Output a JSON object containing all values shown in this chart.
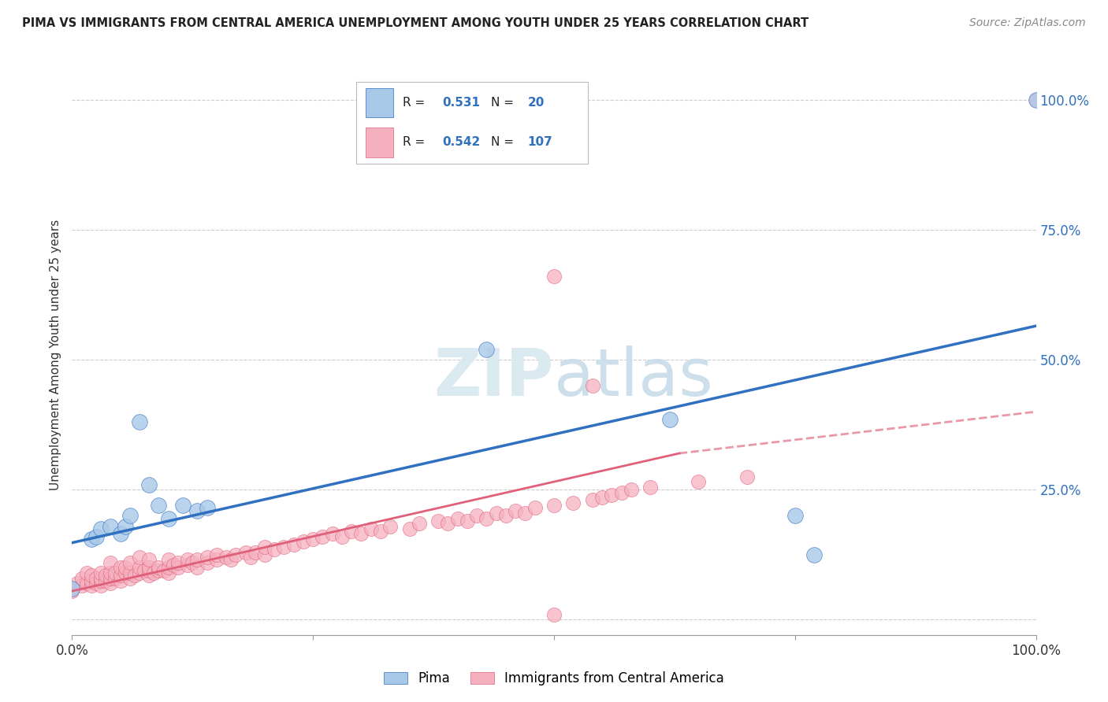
{
  "title": "PIMA VS IMMIGRANTS FROM CENTRAL AMERICA UNEMPLOYMENT AMONG YOUTH UNDER 25 YEARS CORRELATION CHART",
  "source": "Source: ZipAtlas.com",
  "ylabel": "Unemployment Among Youth under 25 years",
  "xlim": [
    0.0,
    1.0
  ],
  "ylim": [
    -0.03,
    1.05
  ],
  "pima_R": 0.531,
  "pima_N": 20,
  "ca_R": 0.542,
  "ca_N": 107,
  "pima_color": "#a8c8e8",
  "pima_line_color": "#3070c0",
  "ca_color": "#f5b0bf",
  "ca_line_color": "#e0607a",
  "background_color": "#ffffff",
  "grid_color": "#cccccc",
  "right_axis_color": "#3070c0",
  "pima_points": [
    [
      0.0,
      0.06
    ],
    [
      0.02,
      0.155
    ],
    [
      0.025,
      0.16
    ],
    [
      0.03,
      0.175
    ],
    [
      0.04,
      0.18
    ],
    [
      0.05,
      0.165
    ],
    [
      0.055,
      0.18
    ],
    [
      0.06,
      0.2
    ],
    [
      0.07,
      0.38
    ],
    [
      0.08,
      0.26
    ],
    [
      0.09,
      0.22
    ],
    [
      0.1,
      0.195
    ],
    [
      0.115,
      0.22
    ],
    [
      0.13,
      0.21
    ],
    [
      0.14,
      0.215
    ],
    [
      0.43,
      0.52
    ],
    [
      0.62,
      0.385
    ],
    [
      0.75,
      0.2
    ],
    [
      0.77,
      0.125
    ],
    [
      1.0,
      1.0
    ]
  ],
  "ca_points": [
    [
      0.0,
      0.055
    ],
    [
      0.005,
      0.07
    ],
    [
      0.01,
      0.065
    ],
    [
      0.01,
      0.08
    ],
    [
      0.015,
      0.07
    ],
    [
      0.015,
      0.09
    ],
    [
      0.02,
      0.065
    ],
    [
      0.02,
      0.075
    ],
    [
      0.02,
      0.085
    ],
    [
      0.025,
      0.07
    ],
    [
      0.025,
      0.08
    ],
    [
      0.03,
      0.065
    ],
    [
      0.03,
      0.075
    ],
    [
      0.03,
      0.08
    ],
    [
      0.03,
      0.09
    ],
    [
      0.035,
      0.075
    ],
    [
      0.035,
      0.085
    ],
    [
      0.04,
      0.07
    ],
    [
      0.04,
      0.08
    ],
    [
      0.04,
      0.09
    ],
    [
      0.04,
      0.11
    ],
    [
      0.045,
      0.08
    ],
    [
      0.045,
      0.09
    ],
    [
      0.05,
      0.075
    ],
    [
      0.05,
      0.085
    ],
    [
      0.05,
      0.1
    ],
    [
      0.055,
      0.09
    ],
    [
      0.055,
      0.1
    ],
    [
      0.06,
      0.08
    ],
    [
      0.06,
      0.09
    ],
    [
      0.06,
      0.11
    ],
    [
      0.065,
      0.085
    ],
    [
      0.07,
      0.09
    ],
    [
      0.07,
      0.1
    ],
    [
      0.07,
      0.12
    ],
    [
      0.075,
      0.095
    ],
    [
      0.08,
      0.085
    ],
    [
      0.08,
      0.095
    ],
    [
      0.08,
      0.1
    ],
    [
      0.08,
      0.115
    ],
    [
      0.085,
      0.09
    ],
    [
      0.09,
      0.095
    ],
    [
      0.09,
      0.1
    ],
    [
      0.095,
      0.095
    ],
    [
      0.1,
      0.09
    ],
    [
      0.1,
      0.1
    ],
    [
      0.1,
      0.115
    ],
    [
      0.105,
      0.105
    ],
    [
      0.11,
      0.1
    ],
    [
      0.11,
      0.11
    ],
    [
      0.12,
      0.105
    ],
    [
      0.12,
      0.115
    ],
    [
      0.125,
      0.11
    ],
    [
      0.13,
      0.1
    ],
    [
      0.13,
      0.115
    ],
    [
      0.14,
      0.11
    ],
    [
      0.14,
      0.12
    ],
    [
      0.15,
      0.115
    ],
    [
      0.15,
      0.125
    ],
    [
      0.16,
      0.12
    ],
    [
      0.165,
      0.115
    ],
    [
      0.17,
      0.125
    ],
    [
      0.18,
      0.13
    ],
    [
      0.185,
      0.12
    ],
    [
      0.19,
      0.13
    ],
    [
      0.2,
      0.125
    ],
    [
      0.2,
      0.14
    ],
    [
      0.21,
      0.135
    ],
    [
      0.22,
      0.14
    ],
    [
      0.23,
      0.145
    ],
    [
      0.24,
      0.15
    ],
    [
      0.25,
      0.155
    ],
    [
      0.26,
      0.16
    ],
    [
      0.27,
      0.165
    ],
    [
      0.28,
      0.16
    ],
    [
      0.29,
      0.17
    ],
    [
      0.3,
      0.165
    ],
    [
      0.31,
      0.175
    ],
    [
      0.32,
      0.17
    ],
    [
      0.33,
      0.18
    ],
    [
      0.35,
      0.175
    ],
    [
      0.36,
      0.185
    ],
    [
      0.38,
      0.19
    ],
    [
      0.39,
      0.185
    ],
    [
      0.4,
      0.195
    ],
    [
      0.41,
      0.19
    ],
    [
      0.42,
      0.2
    ],
    [
      0.43,
      0.195
    ],
    [
      0.44,
      0.205
    ],
    [
      0.45,
      0.2
    ],
    [
      0.46,
      0.21
    ],
    [
      0.47,
      0.205
    ],
    [
      0.48,
      0.215
    ],
    [
      0.5,
      0.22
    ],
    [
      0.5,
      0.66
    ],
    [
      0.52,
      0.225
    ],
    [
      0.54,
      0.23
    ],
    [
      0.54,
      0.45
    ],
    [
      0.55,
      0.235
    ],
    [
      0.56,
      0.24
    ],
    [
      0.57,
      0.245
    ],
    [
      0.58,
      0.25
    ],
    [
      0.6,
      0.255
    ],
    [
      0.5,
      0.01
    ],
    [
      0.65,
      0.265
    ],
    [
      0.7,
      0.275
    ],
    [
      1.0,
      1.0
    ]
  ],
  "pima_line_x0": 0.0,
  "pima_line_y0": 0.148,
  "pima_line_x1": 1.0,
  "pima_line_y1": 0.565,
  "ca_line_solid_x0": 0.0,
  "ca_line_solid_y0": 0.055,
  "ca_line_solid_x1": 0.63,
  "ca_line_solid_y1": 0.32,
  "ca_line_dash_x0": 0.63,
  "ca_line_dash_y0": 0.32,
  "ca_line_dash_x1": 1.0,
  "ca_line_dash_y1": 0.4
}
